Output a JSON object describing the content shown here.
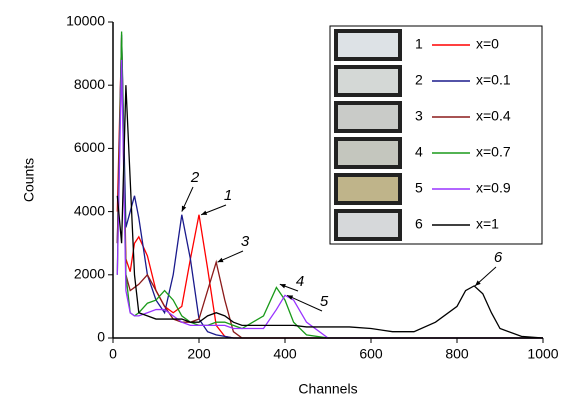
{
  "chart_data": {
    "type": "line",
    "x_label": "Channels",
    "y_label": "Counts",
    "x": [
      10,
      20,
      30,
      40,
      50,
      60,
      80,
      100,
      120,
      140,
      160,
      180,
      200,
      220,
      240,
      260,
      280,
      300,
      350,
      380,
      400,
      420,
      450,
      500,
      550,
      600,
      650,
      700,
      750,
      800,
      820,
      840,
      860,
      880,
      900,
      950,
      1000
    ],
    "series": [
      {
        "id": "1",
        "name": "x=0",
        "color": "#ff0000",
        "values": [
          4000,
          9500,
          2500,
          2100,
          3000,
          3200,
          2600,
          1500,
          1000,
          800,
          1000,
          2500,
          3900,
          2200,
          400,
          50,
          0,
          0,
          0,
          0,
          0,
          0,
          0,
          0,
          0,
          0,
          0,
          0,
          0,
          0,
          0,
          0,
          0,
          0,
          0,
          0,
          0
        ]
      },
      {
        "id": "2",
        "name": "x=0.1",
        "color": "#1a1a8c",
        "values": [
          3000,
          9600,
          3500,
          4000,
          4500,
          3800,
          2000,
          1200,
          800,
          2000,
          3900,
          2500,
          600,
          200,
          100,
          50,
          0,
          0,
          0,
          0,
          0,
          0,
          0,
          0,
          0,
          0,
          0,
          0,
          0,
          0,
          0,
          0,
          0,
          0,
          0,
          0,
          0
        ]
      },
      {
        "id": "3",
        "name": "x=0.4",
        "color": "#8b1a1a",
        "values": [
          3000,
          9000,
          2000,
          1500,
          1600,
          1700,
          2000,
          1500,
          1000,
          600,
          500,
          500,
          600,
          1500,
          2400,
          1200,
          200,
          0,
          0,
          0,
          0,
          0,
          0,
          0,
          0,
          0,
          0,
          0,
          0,
          0,
          0,
          0,
          0,
          0,
          0,
          0,
          0
        ]
      },
      {
        "id": "4",
        "name": "x=0.7",
        "color": "#1a9a1a",
        "values": [
          2000,
          9700,
          2000,
          800,
          700,
          800,
          1100,
          1200,
          1500,
          1200,
          700,
          500,
          400,
          400,
          500,
          500,
          400,
          300,
          700,
          1600,
          1200,
          500,
          100,
          0,
          0,
          0,
          0,
          0,
          0,
          0,
          0,
          0,
          0,
          0,
          0,
          0,
          0
        ]
      },
      {
        "id": "5",
        "name": "x=0.9",
        "color": "#9933ff",
        "values": [
          2000,
          8800,
          1500,
          800,
          700,
          700,
          800,
          900,
          900,
          700,
          500,
          400,
          400,
          400,
          400,
          400,
          300,
          300,
          300,
          900,
          1350,
          1200,
          500,
          0,
          0,
          0,
          0,
          0,
          0,
          0,
          0,
          0,
          0,
          0,
          0,
          0,
          0
        ]
      },
      {
        "id": "6",
        "name": "x=1",
        "color": "#000000",
        "values": [
          4500,
          3000,
          8000,
          5000,
          2000,
          800,
          700,
          600,
          600,
          600,
          600,
          500,
          500,
          700,
          800,
          700,
          500,
          400,
          400,
          400,
          400,
          400,
          350,
          350,
          350,
          300,
          200,
          200,
          500,
          1000,
          1500,
          1650,
          1400,
          800,
          300,
          50,
          0
        ]
      }
    ],
    "annotations": [
      "1",
      "2",
      "3",
      "4",
      "5",
      "6"
    ],
    "xlim": [
      0,
      1000
    ],
    "xticks": [
      0,
      200,
      400,
      600,
      800,
      1000
    ],
    "ylim": [
      0,
      10000
    ],
    "yticks": [
      0,
      2000,
      4000,
      6000,
      8000,
      10000
    ]
  }
}
